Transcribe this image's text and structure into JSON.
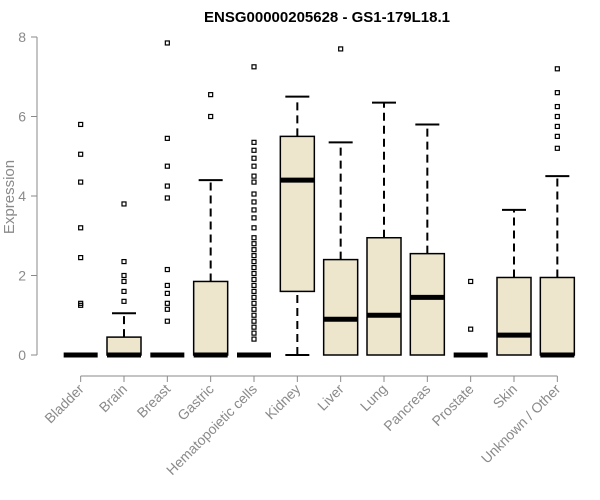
{
  "chart_data": {
    "type": "boxplot",
    "title": "ENSG00000205628 - GS1-179L18.1",
    "xlabel": "",
    "ylabel": "Expression",
    "ylim": [
      0,
      8
    ],
    "yticks": [
      0,
      2,
      4,
      6,
      8
    ],
    "grid": false,
    "colors": {
      "box_fill": "#ede6cd",
      "box_stroke": "#000000",
      "axis": "#8a8a8a"
    },
    "categories": [
      "Bladder",
      "Brain",
      "Breast",
      "Gastric",
      "Hematopoietic cells",
      "Kidney",
      "Liver",
      "Lung",
      "Pancreas",
      "Prostate",
      "Skin",
      "Unknown / Other"
    ],
    "boxes": [
      {
        "name": "Bladder",
        "min": 0,
        "q1": 0,
        "median": 0,
        "q3": 0,
        "max": 0,
        "outliers": [
          1.25,
          1.3,
          2.45,
          3.2,
          4.35,
          5.05,
          5.8
        ]
      },
      {
        "name": "Brain",
        "min": 0,
        "q1": 0,
        "median": 0,
        "q3": 0.45,
        "max": 1.05,
        "outliers": [
          1.35,
          1.6,
          1.85,
          2.0,
          2.35,
          3.8
        ]
      },
      {
        "name": "Breast",
        "min": 0,
        "q1": 0,
        "median": 0,
        "q3": 0,
        "max": 0,
        "outliers": [
          0.85,
          1.15,
          1.3,
          1.55,
          1.75,
          2.15,
          3.95,
          4.25,
          4.75,
          5.45,
          7.85
        ]
      },
      {
        "name": "Gastric",
        "min": 0,
        "q1": 0,
        "median": 0,
        "q3": 1.85,
        "max": 4.4,
        "outliers": [
          6.0,
          6.55
        ]
      },
      {
        "name": "Hematopoietic cells",
        "min": 0,
        "q1": 0,
        "median": 0,
        "q3": 0,
        "max": 0,
        "outliers": [
          0.4,
          0.55,
          0.7,
          0.85,
          1.0,
          1.15,
          1.3,
          1.45,
          1.6,
          1.75,
          1.9,
          2.05,
          2.2,
          2.35,
          2.5,
          2.65,
          2.8,
          2.95,
          3.2,
          3.45,
          3.65,
          3.85,
          4.05,
          4.35,
          4.5,
          4.75,
          4.95,
          5.15,
          5.35,
          7.25
        ]
      },
      {
        "name": "Kidney",
        "min": 0,
        "q1": 1.6,
        "median": 4.4,
        "q3": 5.5,
        "max": 6.5,
        "outliers": []
      },
      {
        "name": "Liver",
        "min": 0,
        "q1": 0,
        "median": 0.9,
        "q3": 2.4,
        "max": 5.35,
        "outliers": [
          7.7
        ]
      },
      {
        "name": "Lung",
        "min": 0,
        "q1": 0,
        "median": 1.0,
        "q3": 2.95,
        "max": 6.35,
        "outliers": []
      },
      {
        "name": "Pancreas",
        "min": 0,
        "q1": 0,
        "median": 1.45,
        "q3": 2.55,
        "max": 5.8,
        "outliers": []
      },
      {
        "name": "Prostate",
        "min": 0,
        "q1": 0,
        "median": 0,
        "q3": 0,
        "max": 0,
        "outliers": [
          0.65,
          1.85
        ]
      },
      {
        "name": "Skin",
        "min": 0,
        "q1": 0,
        "median": 0.5,
        "q3": 1.95,
        "max": 3.65,
        "outliers": []
      },
      {
        "name": "Unknown / Other",
        "min": 0,
        "q1": 0,
        "median": 0,
        "q3": 1.95,
        "max": 4.5,
        "outliers": [
          5.2,
          5.5,
          5.75,
          6.0,
          6.25,
          6.6,
          7.2
        ]
      }
    ]
  }
}
